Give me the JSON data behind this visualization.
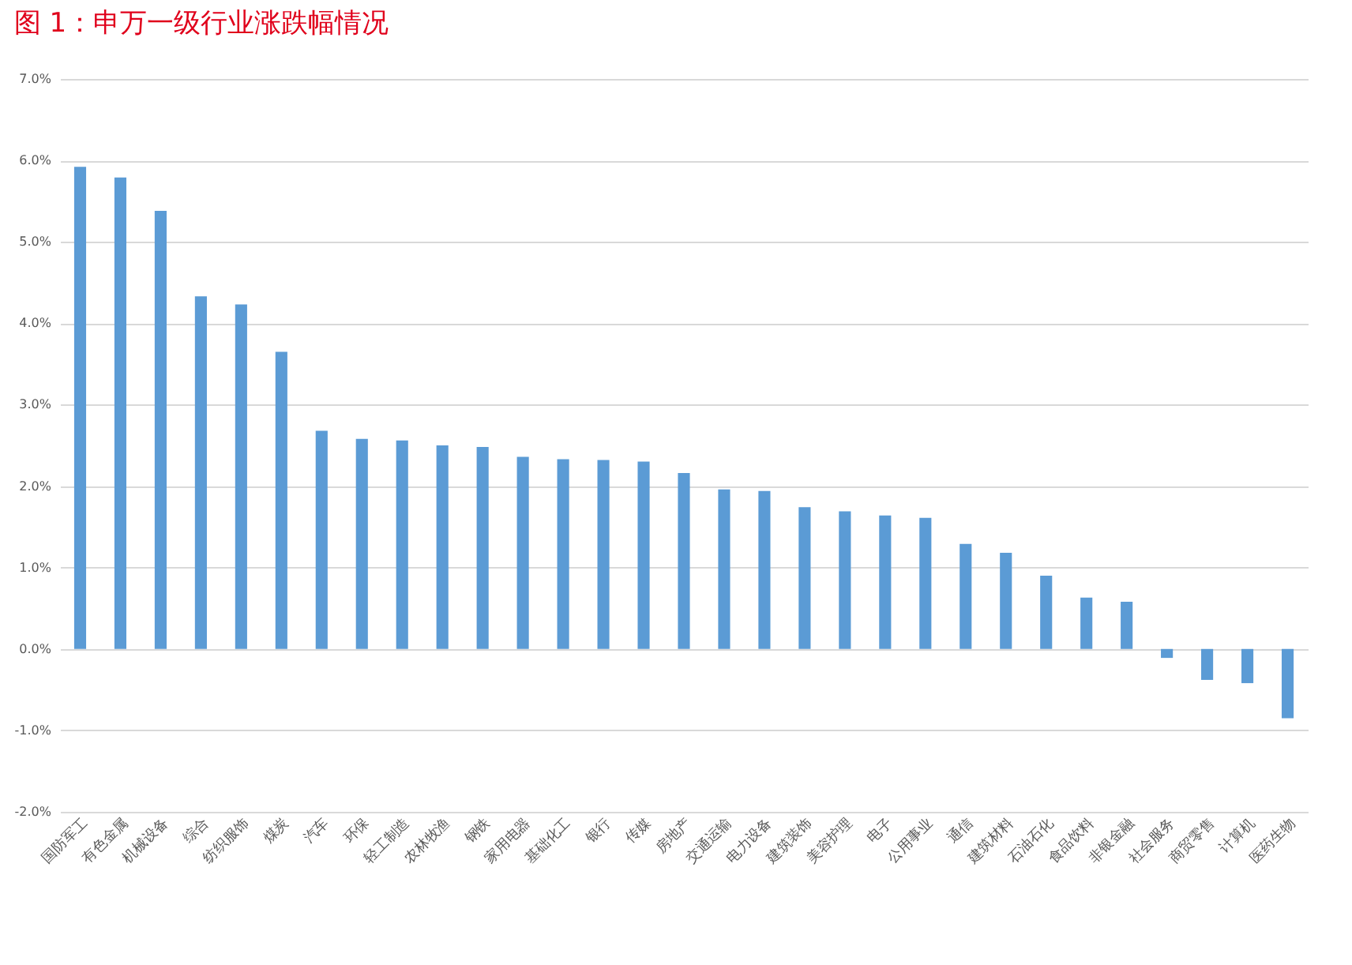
{
  "chart_data": {
    "type": "bar",
    "title": "图 1：申万一级行业涨跌幅情况",
    "categories": [
      "国防军工",
      "有色金属",
      "机械设备",
      "综合",
      "纺织服饰",
      "煤炭",
      "汽车",
      "环保",
      "轻工制造",
      "农林牧渔",
      "钢铁",
      "家用电器",
      "基础化工",
      "银行",
      "传媒",
      "房地产",
      "交通运输",
      "电力设备",
      "建筑装饰",
      "美容护理",
      "电子",
      "公用事业",
      "通信",
      "建筑材料",
      "石油石化",
      "食品饮料",
      "非银金融",
      "社会服务",
      "商贸零售",
      "计算机",
      "医药生物"
    ],
    "values": [
      5.92,
      5.79,
      5.38,
      4.33,
      4.23,
      3.65,
      2.68,
      2.58,
      2.56,
      2.5,
      2.48,
      2.36,
      2.33,
      2.32,
      2.3,
      2.16,
      1.96,
      1.94,
      1.74,
      1.69,
      1.64,
      1.61,
      1.29,
      1.18,
      0.9,
      0.63,
      0.58,
      -0.11,
      -0.38,
      -0.42,
      -0.85
    ],
    "color": "#5b9bd5",
    "ylim": [
      -2,
      7
    ],
    "yticks": [
      {
        "value": -2,
        "label": "-2.0%"
      },
      {
        "value": -1,
        "label": "-1.0%"
      },
      {
        "value": 0,
        "label": "0.0%"
      },
      {
        "value": 1,
        "label": "1.0%"
      },
      {
        "value": 2,
        "label": "2.0%"
      },
      {
        "value": 3,
        "label": "3.0%"
      },
      {
        "value": 4,
        "label": "4.0%"
      },
      {
        "value": 5,
        "label": "5.0%"
      },
      {
        "value": 6,
        "label": "6.0%"
      },
      {
        "value": 7,
        "label": "7.0%"
      }
    ],
    "grid": "y"
  }
}
